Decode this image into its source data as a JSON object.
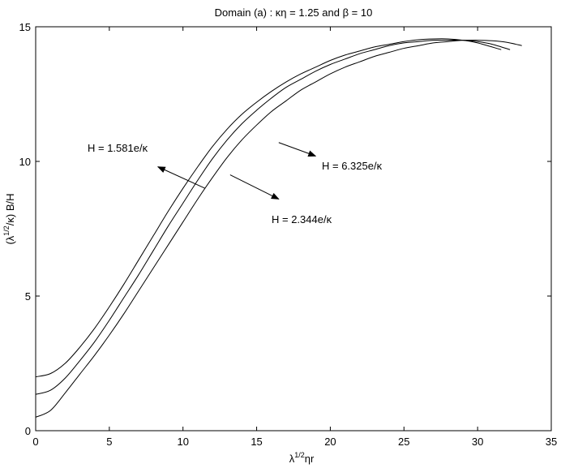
{
  "chart_data": {
    "type": "line",
    "title": "Domain (a) : κη = 1.25 and β = 10",
    "xlabel": "ηr",
    "xlabel_prefix": "λ",
    "xlabel_sup": "1/2",
    "ylabel_a": "(λ",
    "ylabel_sup": "1/2",
    "ylabel_b": "/κ) B/H",
    "xlim": [
      0,
      35
    ],
    "ylim": [
      0,
      15
    ],
    "xticks": [
      0,
      5,
      10,
      15,
      20,
      25,
      30,
      35
    ],
    "yticks": [
      0,
      5,
      10,
      15
    ],
    "grid": false,
    "series": [
      {
        "name": "H = 1.581e/κ",
        "x": [
          0,
          1,
          2,
          3,
          4,
          5,
          6,
          7,
          8,
          9,
          10,
          11,
          12,
          13,
          14,
          15,
          16,
          17,
          18,
          19,
          20,
          21,
          22,
          23,
          24,
          25,
          26,
          27,
          28,
          29,
          30,
          31.6
        ],
        "y": [
          2.0,
          2.12,
          2.5,
          3.1,
          3.8,
          4.6,
          5.45,
          6.35,
          7.25,
          8.15,
          9.0,
          9.8,
          10.55,
          11.2,
          11.75,
          12.2,
          12.6,
          12.95,
          13.25,
          13.5,
          13.75,
          13.95,
          14.1,
          14.25,
          14.35,
          14.45,
          14.52,
          14.55,
          14.55,
          14.5,
          14.4,
          14.15
        ]
      },
      {
        "name": "H = 2.344e/κ",
        "x": [
          0,
          1,
          2,
          3,
          4,
          5,
          6,
          7,
          8,
          9,
          10,
          11,
          12,
          13,
          14,
          15,
          16,
          17,
          18,
          19,
          20,
          21,
          22,
          23,
          24,
          25,
          26,
          27,
          28,
          29,
          30,
          31,
          32.2
        ],
        "y": [
          1.35,
          1.5,
          1.95,
          2.6,
          3.3,
          4.1,
          4.95,
          5.8,
          6.7,
          7.6,
          8.45,
          9.3,
          10.1,
          10.8,
          11.4,
          11.9,
          12.35,
          12.75,
          13.05,
          13.35,
          13.6,
          13.8,
          14.0,
          14.15,
          14.3,
          14.4,
          14.45,
          14.5,
          14.5,
          14.5,
          14.45,
          14.35,
          14.15
        ]
      },
      {
        "name": "H = 6.325e/κ",
        "x": [
          0,
          1,
          2,
          3,
          4,
          5,
          6,
          7,
          8,
          9,
          10,
          11,
          12,
          13,
          14,
          15,
          16,
          17,
          18,
          19,
          20,
          21,
          22,
          23,
          24,
          25,
          26,
          27,
          28,
          29,
          30,
          31,
          32,
          33
        ],
        "y": [
          0.5,
          0.75,
          1.4,
          2.1,
          2.8,
          3.55,
          4.35,
          5.2,
          6.05,
          6.9,
          7.75,
          8.6,
          9.4,
          10.15,
          10.8,
          11.35,
          11.85,
          12.25,
          12.65,
          12.95,
          13.25,
          13.5,
          13.7,
          13.9,
          14.05,
          14.2,
          14.3,
          14.4,
          14.45,
          14.5,
          14.5,
          14.48,
          14.42,
          14.3
        ]
      }
    ],
    "annotations": [
      {
        "text": "H = 1.581e/κ",
        "arrow_from": [
          11.5,
          9.0
        ],
        "arrow_to": [
          8.3,
          9.8
        ]
      },
      {
        "text": "H = 2.344e/κ",
        "arrow_from": [
          13.2,
          9.5
        ],
        "arrow_to": [
          16.5,
          8.6
        ]
      },
      {
        "text": "H = 6.325e/κ",
        "arrow_from": [
          16.5,
          10.7
        ],
        "arrow_to": [
          19.0,
          10.2
        ]
      }
    ]
  }
}
